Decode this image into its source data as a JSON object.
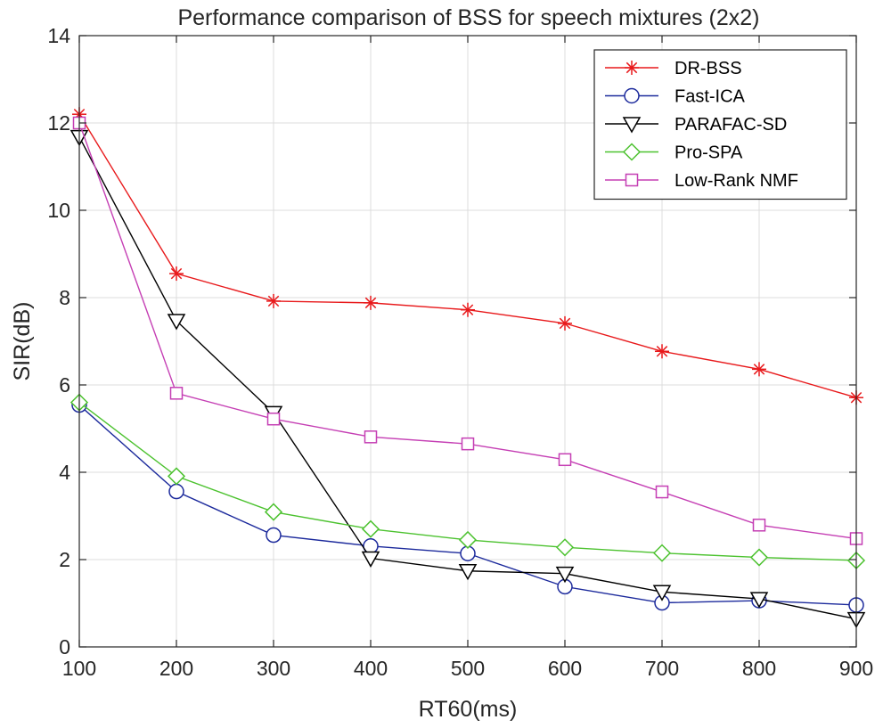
{
  "chart_data": {
    "type": "line",
    "title": "Performance comparison of BSS for speech mixtures (2x2)",
    "xlabel": "RT60(ms)",
    "ylabel": "SIR(dB)",
    "x": [
      100,
      200,
      300,
      400,
      500,
      600,
      700,
      800,
      900
    ],
    "xlim": [
      100,
      900
    ],
    "ylim": [
      0,
      14
    ],
    "xticks": [
      "100",
      "200",
      "300",
      "400",
      "500",
      "600",
      "700",
      "800",
      "900"
    ],
    "yticks": [
      "0",
      "2",
      "4",
      "6",
      "8",
      "10",
      "12",
      "14"
    ],
    "grid": true,
    "legend_position": "top-right",
    "series": [
      {
        "name": "DR-BSS",
        "color": "#e8191b",
        "marker": "asterisk",
        "values": [
          12.2,
          8.55,
          7.92,
          7.88,
          7.72,
          7.41,
          6.77,
          6.36,
          5.71
        ]
      },
      {
        "name": "Fast-ICA",
        "color": "#1c2a9c",
        "marker": "circle",
        "values": [
          5.54,
          3.56,
          2.56,
          2.31,
          2.14,
          1.38,
          1.01,
          1.06,
          0.96
        ]
      },
      {
        "name": "PARAFAC-SD",
        "color": "#000000",
        "marker": "triangle-down",
        "values": [
          11.68,
          7.47,
          5.36,
          2.03,
          1.74,
          1.68,
          1.26,
          1.1,
          0.64
        ]
      },
      {
        "name": "Pro-SPA",
        "color": "#4cc22f",
        "marker": "diamond",
        "values": [
          5.6,
          3.91,
          3.09,
          2.7,
          2.45,
          2.28,
          2.15,
          2.05,
          1.98
        ]
      },
      {
        "name": "Low-Rank NMF",
        "color": "#c53fb4",
        "marker": "square",
        "values": [
          12.0,
          5.81,
          5.22,
          4.81,
          4.65,
          4.29,
          3.55,
          2.79,
          2.48
        ]
      }
    ]
  }
}
